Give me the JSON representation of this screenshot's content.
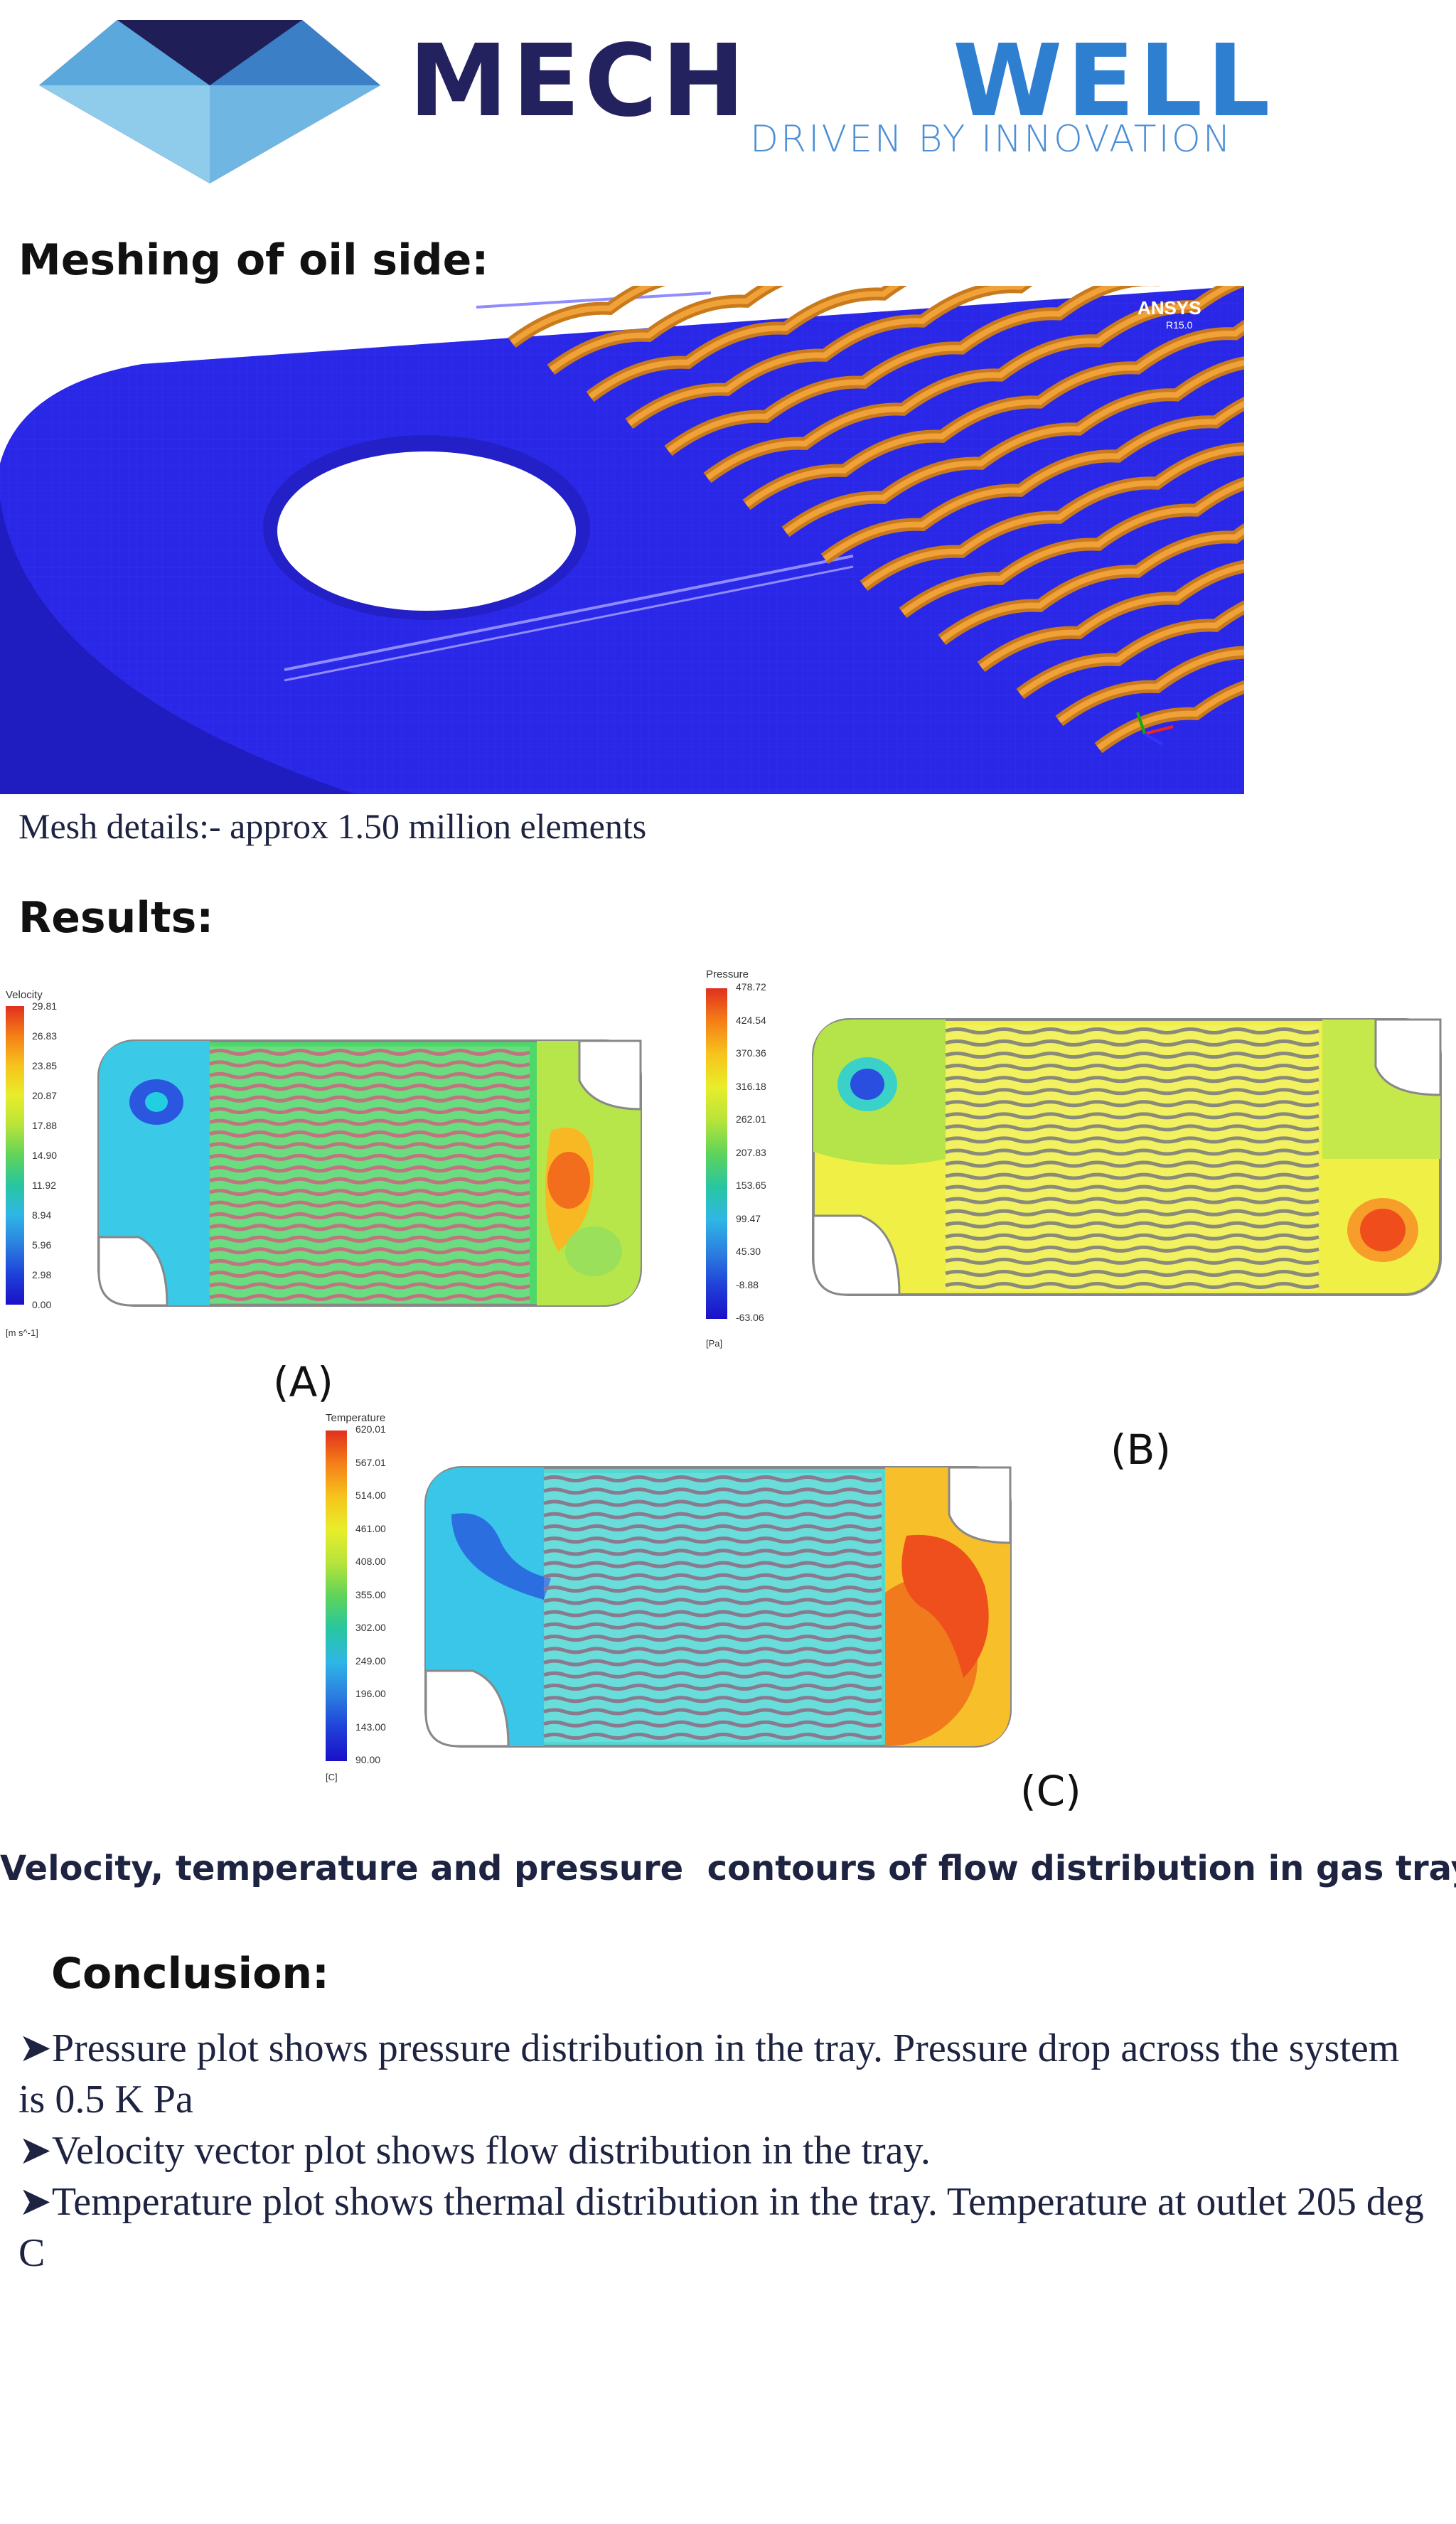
{
  "header": {
    "brand_left": "MECH",
    "brand_right": "WELL",
    "tagline": "DRIVEN BY INNOVATION",
    "colors": {
      "navy": "#23225e",
      "blue": "#2f7fd1",
      "tagline": "#4c8fd6"
    }
  },
  "mesh_section": {
    "heading": "Meshing of oil side:",
    "watermark": "ANSYS",
    "watermark_version": "R15.0",
    "details": "Mesh details:- approx 1.50 million elements"
  },
  "results": {
    "heading": "Results:",
    "velocity": {
      "legend_title": "Velocity",
      "values": [
        "29.81",
        "26.83",
        "23.85",
        "20.87",
        "17.88",
        "14.90",
        "11.92",
        "8.94",
        "5.96",
        "2.98",
        "0.00"
      ],
      "unit": "[m s^-1]",
      "label": "(A)"
    },
    "pressure": {
      "legend_title": "Pressure",
      "values": [
        "478.72",
        "424.54",
        "370.36",
        "316.18",
        "262.01",
        "207.83",
        "153.65",
        "99.47",
        "45.30",
        "-8.88",
        "-63.06"
      ],
      "unit": "[Pa]",
      "label": "(B)"
    },
    "temperature": {
      "legend_title": "Temperature",
      "values": [
        "620.01",
        "567.01",
        "514.00",
        "461.00",
        "408.00",
        "355.00",
        "302.00",
        "249.00",
        "196.00",
        "143.00",
        "90.00"
      ],
      "unit": "[C]",
      "label": "(C)"
    },
    "caption": "Velocity, temperature and pressure  contours of flow distribution in gas tray."
  },
  "conclusion": {
    "heading": "Conclusion:",
    "items": [
      "Pressure plot shows pressure distribution in the tray. Pressure drop across the system is 0.5 K Pa",
      "Velocity vector plot shows flow distribution in the tray.",
      "Temperature plot shows thermal distribution in the tray. Temperature at outlet 205 deg C"
    ]
  }
}
